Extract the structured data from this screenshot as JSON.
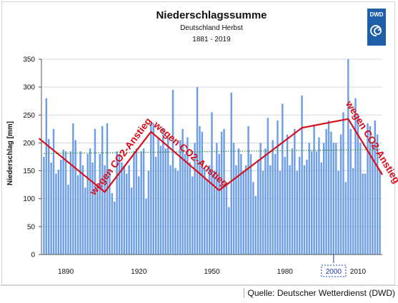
{
  "chart_data": {
    "type": "bar",
    "title": "Niederschlagssumme",
    "subtitle": "Deutschland Herbst",
    "period": "1881 - 2019",
    "ylabel": "Niederschlag [mm]",
    "xlabel": "",
    "ylim": [
      0,
      350
    ],
    "yticks": [
      "0",
      "50",
      "100",
      "150",
      "200",
      "250",
      "300",
      "350"
    ],
    "xticks": [
      {
        "year": 1890,
        "label": "1890"
      },
      {
        "year": 1920,
        "label": "1920"
      },
      {
        "year": 1950,
        "label": "1950"
      },
      {
        "year": 1980,
        "label": "1980"
      },
      {
        "year": 2000,
        "label": "2000",
        "highlighted": true
      },
      {
        "year": 2010,
        "label": "2010"
      }
    ],
    "x_start": 1881,
    "x_end": 2019,
    "grid": "horizontal",
    "bar_color": "#6e9fe6",
    "annotation_color": "#d80f1a",
    "values": [
      175,
      280,
      207,
      165,
      225,
      145,
      152,
      170,
      188,
      185,
      125,
      185,
      235,
      205,
      142,
      185,
      160,
      120,
      180,
      190,
      165,
      225,
      125,
      180,
      230,
      160,
      235,
      150,
      110,
      95,
      185,
      180,
      165,
      160,
      145,
      160,
      120,
      185,
      190,
      140,
      185,
      190,
      100,
      150,
      235,
      235,
      175,
      210,
      195,
      225,
      190,
      210,
      160,
      295,
      155,
      150,
      205,
      225,
      180,
      210,
      165,
      140,
      200,
      300,
      230,
      220,
      155,
      135,
      160,
      255,
      150,
      200,
      180,
      220,
      225,
      125,
      85,
      290,
      200,
      160,
      190,
      180,
      150,
      160,
      230,
      180,
      130,
      105,
      170,
      200,
      150,
      190,
      245,
      160,
      205,
      180,
      240,
      150,
      270,
      175,
      215,
      160,
      190,
      225,
      150,
      175,
      285,
      160,
      170,
      200,
      185,
      230,
      185,
      210,
      165,
      200,
      225,
      240,
      220,
      200,
      200,
      150,
      215,
      255,
      130,
      350,
      225,
      155,
      280,
      250,
      200,
      145,
      145,
      235,
      230,
      200,
      240,
      215,
      150
    ],
    "trend": {
      "from": 181,
      "to": 188,
      "color": "#3d8a4a",
      "style": "dotted"
    },
    "annotation_polyline": [
      [
        1879,
        208
      ],
      [
        1906,
        112
      ],
      [
        1925,
        220
      ],
      [
        1953,
        115
      ],
      [
        1987,
        227
      ],
      [
        2006,
        243
      ],
      [
        2020,
        143
      ]
    ],
    "annotations": [
      {
        "text": "wegen CO2-Anstieg",
        "segment": 2
      },
      {
        "text": "wegen CO2-Anstieg",
        "segment": 3
      },
      {
        "text": "wegen CO2-Anstieg",
        "segment": 6
      }
    ],
    "logo": "DWD",
    "logo_color": "#1f5fa8"
  },
  "source": "Quelle: Deutscher Wetterdienst (DWD)"
}
